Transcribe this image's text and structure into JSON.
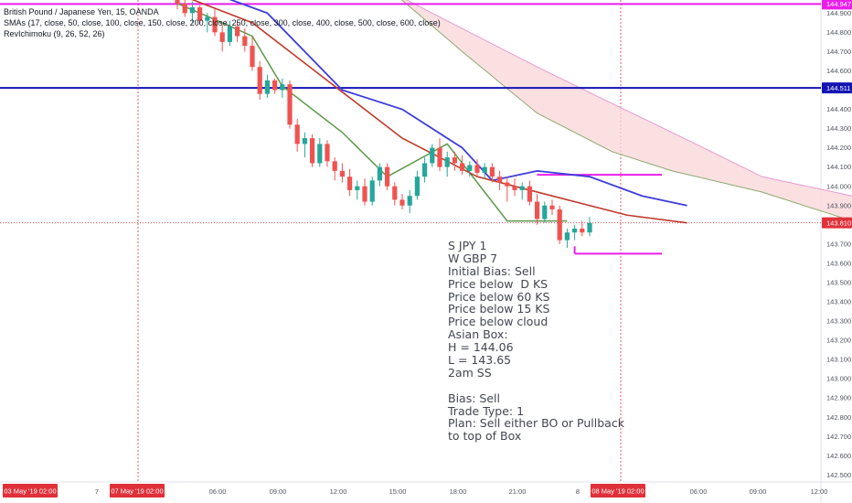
{
  "legend": {
    "symbol": "British Pound / Japanese Yen, 15, OANDA",
    "sma": "SMAs (17, close, 50, close, 100, close, 150, close, 200, close, 250, close, 300, close, 400, close, 500, close, 600, close)",
    "ichimoku": "RevIchimoku (9, 26, 52, 26)"
  },
  "notes": [
    "S JPY 1",
    "W GBP 7",
    "Initial Bias: Sell",
    "Price below  D KS",
    "Price below 60 KS",
    "Price below 15 KS",
    "Price below cloud",
    "Asian Box:",
    "H = 144.06",
    "L = 143.65",
    "2am SS",
    "",
    "Bias: Sell",
    "Trade Type: 1",
    "Plan: Sell either BO or Pullback",
    "to top of Box"
  ],
  "colors": {
    "up": "#26a69a",
    "down": "#ef5350",
    "sma_red": "#c0392b",
    "sma_blue": "#3d3ddb",
    "sma_pink": "#f48fb1",
    "chikou": "#5c9a4a",
    "cloud": "#f9d5d8",
    "hline_blue": "#1414b4",
    "hline_magenta": "#e91ee9",
    "badge_red": "#e0303a",
    "badge_blue": "#1414b4",
    "badge_magenta": "#e91ee9"
  },
  "chart_data": {
    "type": "candlestick",
    "title": "British Pound / Japanese Yen, 15, OANDA",
    "ylim": [
      142.45,
      145.0
    ],
    "y_ticks": [
      "144.900",
      "144.800",
      "144.700",
      "144.600",
      "144.500",
      "144.400",
      "144.300",
      "144.200",
      "144.100",
      "144.000",
      "143.900",
      "143.800",
      "143.700",
      "143.600",
      "143.500",
      "143.400",
      "143.300",
      "143.200",
      "143.100",
      "143.000",
      "142.900",
      "142.800",
      "142.700",
      "142.600",
      "142.500"
    ],
    "x_ticks": [
      "7",
      "06:00",
      "09:00",
      "12:00",
      "15:00",
      "18:00",
      "21:00",
      "8",
      "06:00",
      "09:00",
      "12:00"
    ],
    "x_badges": [
      "03 May '19   02:00",
      "07 May '19   02:00",
      "08 May '19   02:00"
    ],
    "price_badges": [
      {
        "label": "144.947",
        "color": "magenta"
      },
      {
        "label": "144.511",
        "color": "blue"
      },
      {
        "label": "143.810",
        "color": "red"
      }
    ],
    "horizontal_lines": [
      {
        "price": 144.947,
        "color": "magenta"
      },
      {
        "price": 144.511,
        "color": "blue"
      }
    ],
    "asian_box": {
      "high": 144.06,
      "low": 143.65
    },
    "current_price": 143.81,
    "candles": [
      [
        145.0,
        145.02,
        144.92,
        144.95
      ],
      [
        144.95,
        144.98,
        144.88,
        144.9
      ],
      [
        144.9,
        144.96,
        144.85,
        144.93
      ],
      [
        144.93,
        144.94,
        144.84,
        144.86
      ],
      [
        144.86,
        144.9,
        144.8,
        144.88
      ],
      [
        144.88,
        144.92,
        144.78,
        144.8
      ],
      [
        144.8,
        144.84,
        144.7,
        144.75
      ],
      [
        144.75,
        144.86,
        144.73,
        144.83
      ],
      [
        144.83,
        144.86,
        144.75,
        144.78
      ],
      [
        144.78,
        144.82,
        144.7,
        144.73
      ],
      [
        144.73,
        144.78,
        144.6,
        144.62
      ],
      [
        144.62,
        144.65,
        144.45,
        144.48
      ],
      [
        144.48,
        144.58,
        144.46,
        144.55
      ],
      [
        144.55,
        144.56,
        144.48,
        144.5
      ],
      [
        144.5,
        144.56,
        144.46,
        144.53
      ],
      [
        144.53,
        144.55,
        144.3,
        144.32
      ],
      [
        144.32,
        144.35,
        144.18,
        144.22
      ],
      [
        144.22,
        144.28,
        144.15,
        144.25
      ],
      [
        144.25,
        144.27,
        144.1,
        144.12
      ],
      [
        144.12,
        144.25,
        144.1,
        144.22
      ],
      [
        144.22,
        144.24,
        144.1,
        144.13
      ],
      [
        144.13,
        144.15,
        144.03,
        144.08
      ],
      [
        144.08,
        144.12,
        144.02,
        144.05
      ],
      [
        144.05,
        144.09,
        143.95,
        143.98
      ],
      [
        143.98,
        144.03,
        143.93,
        144.0
      ],
      [
        144.0,
        144.04,
        143.9,
        143.92
      ],
      [
        143.92,
        144.05,
        143.9,
        144.03
      ],
      [
        144.03,
        144.12,
        144.0,
        144.1
      ],
      [
        144.1,
        144.12,
        143.98,
        144.0
      ],
      [
        144.0,
        144.02,
        143.9,
        143.93
      ],
      [
        143.93,
        143.96,
        143.88,
        143.9
      ],
      [
        143.9,
        143.98,
        143.86,
        143.95
      ],
      [
        143.95,
        144.08,
        143.93,
        144.05
      ],
      [
        144.05,
        144.15,
        144.02,
        144.12
      ],
      [
        144.12,
        144.22,
        144.1,
        144.2
      ],
      [
        144.2,
        144.25,
        144.08,
        144.1
      ],
      [
        144.1,
        144.18,
        144.05,
        144.15
      ],
      [
        144.15,
        144.18,
        144.08,
        144.12
      ],
      [
        144.12,
        144.16,
        144.06,
        144.08
      ],
      [
        144.08,
        144.13,
        144.05,
        144.11
      ],
      [
        144.11,
        144.14,
        144.05,
        144.07
      ],
      [
        144.07,
        144.12,
        144.04,
        144.1
      ],
      [
        144.1,
        144.12,
        144.02,
        144.05
      ],
      [
        144.05,
        144.08,
        143.98,
        144.02
      ],
      [
        144.02,
        144.05,
        143.92,
        144.0
      ],
      [
        144.0,
        144.04,
        143.95,
        143.98
      ],
      [
        143.98,
        144.02,
        143.93,
        144.0
      ],
      [
        144.0,
        144.03,
        143.9,
        143.92
      ],
      [
        143.92,
        143.96,
        143.8,
        143.83
      ],
      [
        143.83,
        143.92,
        143.81,
        143.9
      ],
      [
        143.9,
        143.93,
        143.85,
        143.88
      ],
      [
        143.88,
        143.9,
        143.7,
        143.72
      ],
      [
        143.72,
        143.78,
        143.68,
        143.76
      ],
      [
        143.76,
        143.8,
        143.72,
        143.78
      ],
      [
        143.78,
        143.82,
        143.74,
        143.76
      ],
      [
        143.76,
        143.84,
        143.74,
        143.81
      ]
    ],
    "sma_red": [
      [
        0,
        145.0
      ],
      [
        10,
        144.85
      ],
      [
        20,
        144.55
      ],
      [
        30,
        144.25
      ],
      [
        40,
        144.05
      ],
      [
        50,
        143.95
      ],
      [
        60,
        143.85
      ],
      [
        68,
        143.81
      ]
    ],
    "sma_blue": [
      [
        5,
        145.0
      ],
      [
        12,
        144.9
      ],
      [
        22,
        144.5
      ],
      [
        30,
        144.4
      ],
      [
        38,
        144.2
      ],
      [
        42,
        144.03
      ],
      [
        48,
        144.08
      ],
      [
        55,
        144.05
      ],
      [
        62,
        143.95
      ],
      [
        68,
        143.9
      ]
    ],
    "chikou": [
      [
        0,
        144.95
      ],
      [
        6,
        144.85
      ],
      [
        10,
        144.78
      ],
      [
        14,
        144.52
      ],
      [
        22,
        144.28
      ],
      [
        28,
        144.05
      ],
      [
        36,
        144.22
      ],
      [
        44,
        143.82
      ],
      [
        52,
        143.82
      ]
    ],
    "cloud_top": [
      [
        29,
        145.0
      ],
      [
        38,
        144.82
      ],
      [
        48,
        144.62
      ],
      [
        58,
        144.43
      ],
      [
        66,
        144.28
      ],
      [
        78,
        144.05
      ],
      [
        90,
        143.95
      ]
    ],
    "cloud_bottom": [
      [
        29,
        145.0
      ],
      [
        38,
        144.7
      ],
      [
        48,
        144.38
      ],
      [
        58,
        144.18
      ],
      [
        66,
        144.08
      ],
      [
        78,
        143.97
      ],
      [
        90,
        143.82
      ]
    ]
  }
}
